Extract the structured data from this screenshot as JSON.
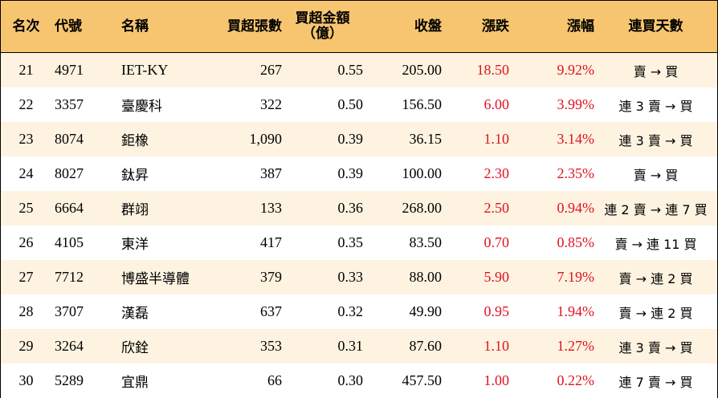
{
  "headers": {
    "rank": "名次",
    "code": "代號",
    "name": "名稱",
    "net_buy_lots": "買超張數",
    "net_buy_amount": "買超金額",
    "net_buy_amount_unit": "（億）",
    "close": "收盤",
    "change": "漲跌",
    "change_pct": "漲幅",
    "streak": "連買天數"
  },
  "rows": [
    {
      "rank": "21",
      "code": "4971",
      "name": "IET-KY",
      "lots": "267",
      "amount": "0.55",
      "close": "205.00",
      "change": "18.50",
      "pct": "9.92%",
      "streak": "賣 → 買"
    },
    {
      "rank": "22",
      "code": "3357",
      "name": "臺慶科",
      "lots": "322",
      "amount": "0.50",
      "close": "156.50",
      "change": "6.00",
      "pct": "3.99%",
      "streak": "連 3 賣 → 買"
    },
    {
      "rank": "23",
      "code": "8074",
      "name": "鉅橡",
      "lots": "1,090",
      "amount": "0.39",
      "close": "36.15",
      "change": "1.10",
      "pct": "3.14%",
      "streak": "連 3 賣 → 買"
    },
    {
      "rank": "24",
      "code": "8027",
      "name": "鈦昇",
      "lots": "387",
      "amount": "0.39",
      "close": "100.00",
      "change": "2.30",
      "pct": "2.35%",
      "streak": "賣 → 買"
    },
    {
      "rank": "25",
      "code": "6664",
      "name": "群翊",
      "lots": "133",
      "amount": "0.36",
      "close": "268.00",
      "change": "2.50",
      "pct": "0.94%",
      "streak": "連 2 賣 → 連 7 買"
    },
    {
      "rank": "26",
      "code": "4105",
      "name": "東洋",
      "lots": "417",
      "amount": "0.35",
      "close": "83.50",
      "change": "0.70",
      "pct": "0.85%",
      "streak": "賣 → 連 11 買"
    },
    {
      "rank": "27",
      "code": "7712",
      "name": "博盛半導體",
      "lots": "379",
      "amount": "0.33",
      "close": "88.00",
      "change": "5.90",
      "pct": "7.19%",
      "streak": "賣 → 連 2 買"
    },
    {
      "rank": "28",
      "code": "3707",
      "name": "漢磊",
      "lots": "637",
      "amount": "0.32",
      "close": "49.90",
      "change": "0.95",
      "pct": "1.94%",
      "streak": "賣 → 連 2 買"
    },
    {
      "rank": "29",
      "code": "3264",
      "name": "欣銓",
      "lots": "353",
      "amount": "0.31",
      "close": "87.60",
      "change": "1.10",
      "pct": "1.27%",
      "streak": "連 3 賣 → 買"
    },
    {
      "rank": "30",
      "code": "5289",
      "name": "宜鼎",
      "lots": "66",
      "amount": "0.30",
      "close": "457.50",
      "change": "1.00",
      "pct": "0.22%",
      "streak": "連 7 賣 → 買"
    }
  ],
  "colors": {
    "header_bg": "#f7c56f",
    "odd_row_bg": "#fdf3e0",
    "even_row_bg": "#ffffff",
    "up_color": "#e0121f"
  }
}
